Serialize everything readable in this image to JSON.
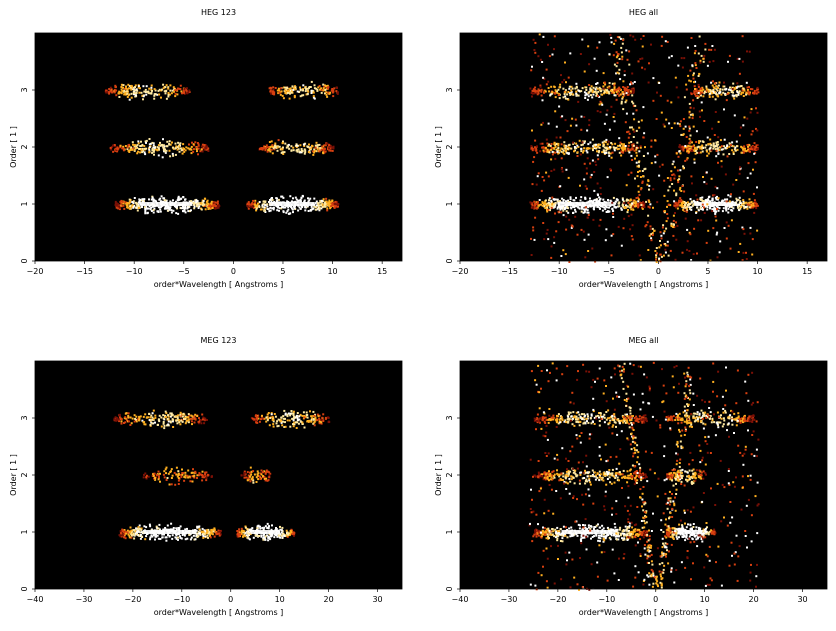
{
  "chart_data": [
    {
      "type": "heatmap",
      "title": "HEG 123",
      "xlabel": "order*Wavelength [ Angstroms ]",
      "ylabel": "Order [ 1 ]",
      "xlim": [
        -20,
        17
      ],
      "ylim": [
        0,
        4
      ],
      "xticks": [
        -20,
        -15,
        -10,
        -5,
        0,
        5,
        10,
        15
      ],
      "yticks": [
        0,
        1,
        2,
        3
      ],
      "bands": [
        {
          "order": 1,
          "x_ranges": [
            [
              -12,
              -1.5
            ],
            [
              1.3,
              10.5
            ]
          ],
          "intensity": "high"
        },
        {
          "order": 2,
          "x_ranges": [
            [
              -12.5,
              -2.5
            ],
            [
              2.5,
              10
            ]
          ],
          "intensity": "medium"
        },
        {
          "order": 3,
          "x_ranges": [
            [
              -13,
              -4.5
            ],
            [
              3.5,
              10.5
            ]
          ],
          "intensity": "medium"
        }
      ],
      "colormap": "black-red-orange-yellow-white",
      "grid": false
    },
    {
      "type": "heatmap",
      "title": "HEG all",
      "xlabel": "order*Wavelength [ Angstroms ]",
      "ylabel": "Order [ 1 ]",
      "xlim": [
        -20,
        17
      ],
      "ylim": [
        0,
        4
      ],
      "xticks": [
        -20,
        -15,
        -10,
        -5,
        0,
        5,
        10,
        15
      ],
      "yticks": [
        0,
        1,
        2,
        3
      ],
      "bands": [
        {
          "order": 1,
          "x_ranges": [
            [
              -13,
              -1.5
            ],
            [
              1.5,
              10
            ]
          ],
          "intensity": "high"
        },
        {
          "order": 2,
          "x_ranges": [
            [
              -13,
              -2
            ],
            [
              2,
              10
            ]
          ],
          "intensity": "medium"
        },
        {
          "order": 3,
          "x_ranges": [
            [
              -13,
              -2.5
            ],
            [
              3,
              10
            ]
          ],
          "intensity": "medium"
        }
      ],
      "colormap": "black-red-orange-yellow-white",
      "grid": false
    },
    {
      "type": "heatmap",
      "title": "MEG 123",
      "xlabel": "order*Wavelength [ Angstroms ]",
      "ylabel": "Order [ 1 ]",
      "xlim": [
        -40,
        35
      ],
      "ylim": [
        0,
        4
      ],
      "xticks": [
        -40,
        -30,
        -20,
        -10,
        0,
        10,
        20,
        30
      ],
      "yticks": [
        0,
        1,
        2,
        3
      ],
      "bands": [
        {
          "order": 1,
          "x_ranges": [
            [
              -23,
              -2
            ],
            [
              1,
              13
            ]
          ],
          "intensity": "high"
        },
        {
          "order": 2,
          "x_ranges": [
            [
              -18,
              -4
            ],
            [
              2,
              8
            ]
          ],
          "intensity": "low"
        },
        {
          "order": 3,
          "x_ranges": [
            [
              -24,
              -5
            ],
            [
              4,
              20
            ]
          ],
          "intensity": "medium"
        }
      ],
      "colormap": "black-red-orange-yellow-white",
      "grid": false
    },
    {
      "type": "heatmap",
      "title": "MEG all",
      "xlabel": "order*Wavelength [ Angstroms ]",
      "ylabel": "Order [ 1 ]",
      "xlim": [
        -40,
        35
      ],
      "ylim": [
        0,
        4
      ],
      "xticks": [
        -40,
        -30,
        -20,
        -10,
        0,
        10,
        20,
        30
      ],
      "yticks": [
        0,
        1,
        2,
        3
      ],
      "bands": [
        {
          "order": 1,
          "x_ranges": [
            [
              -25,
              -2
            ],
            [
              2,
              12
            ]
          ],
          "intensity": "high"
        },
        {
          "order": 2,
          "x_ranges": [
            [
              -25,
              -2
            ],
            [
              2,
              10
            ]
          ],
          "intensity": "medium"
        },
        {
          "order": 3,
          "x_ranges": [
            [
              -25,
              -2
            ],
            [
              2,
              20
            ]
          ],
          "intensity": "medium"
        }
      ],
      "colormap": "black-red-orange-yellow-white",
      "grid": false
    }
  ]
}
